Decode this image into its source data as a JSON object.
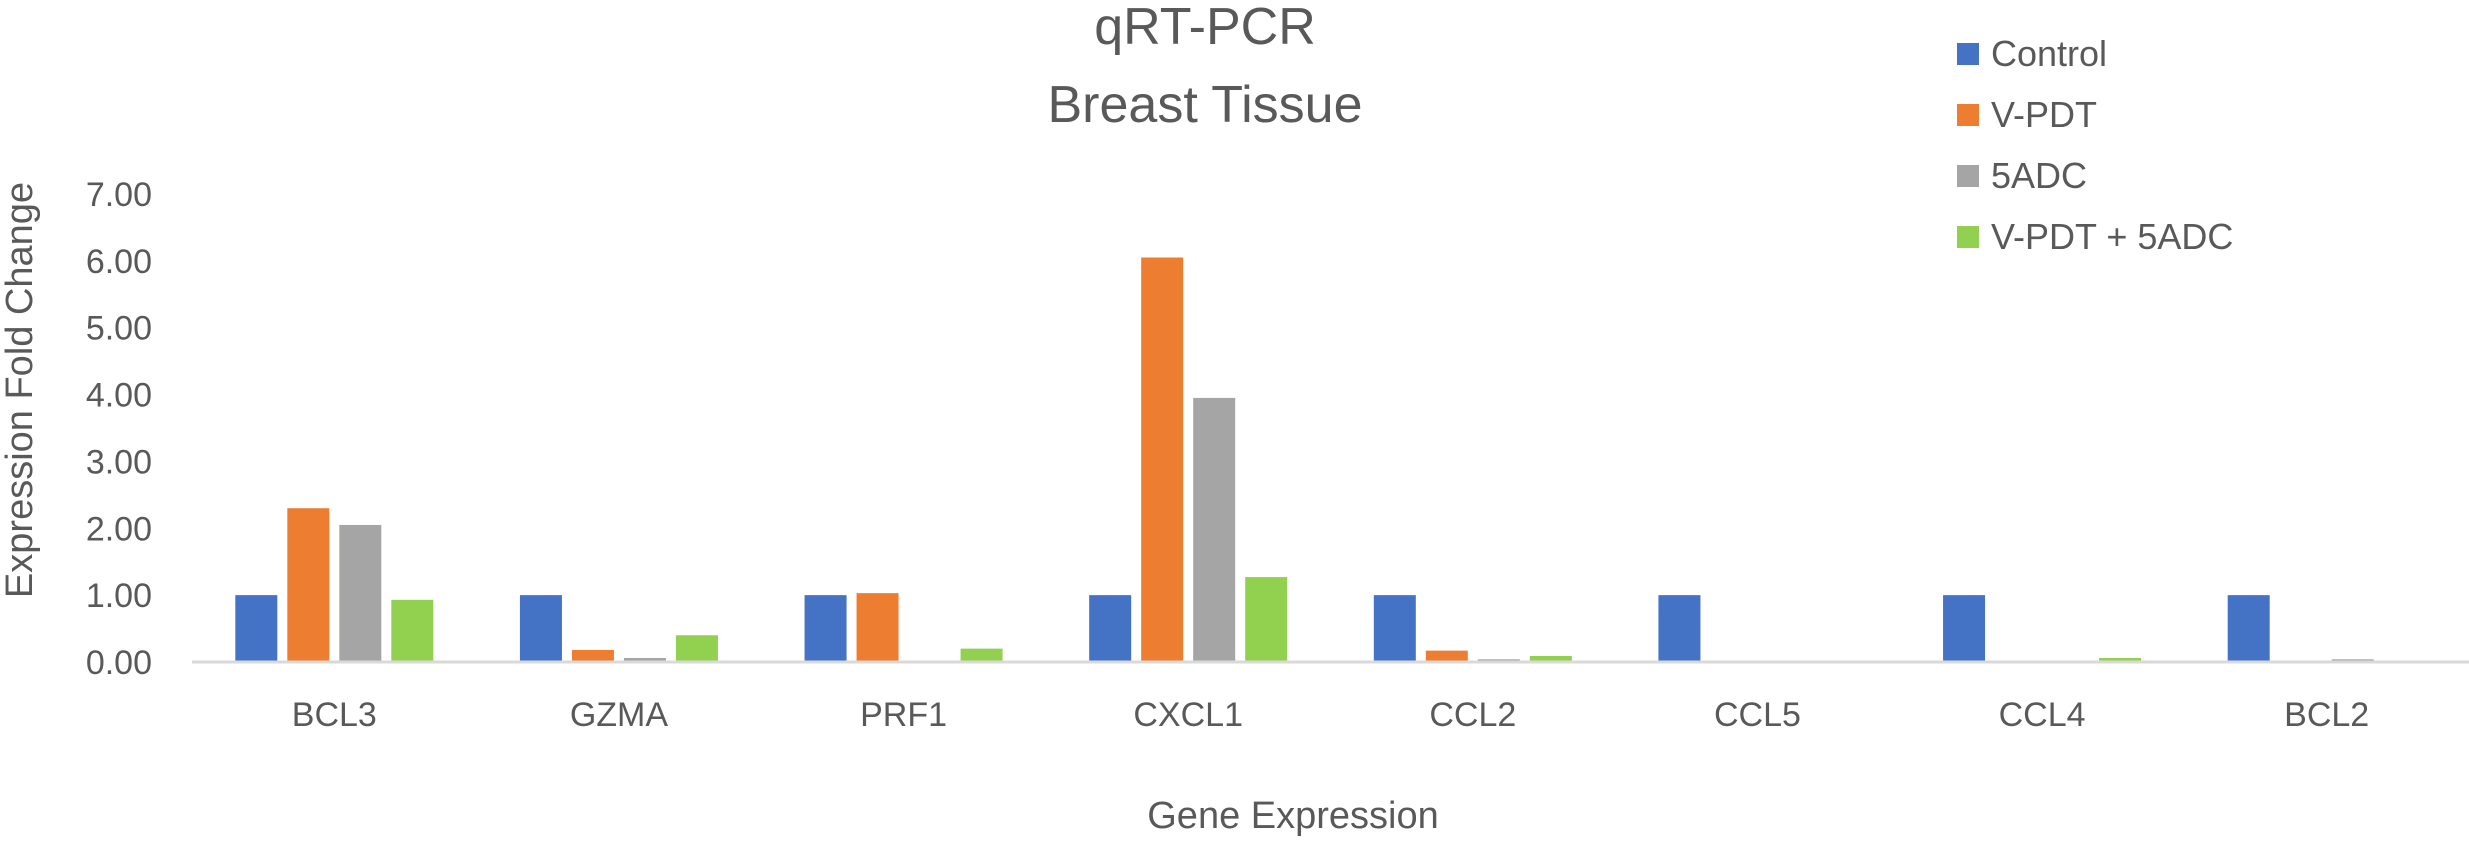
{
  "chart_data": {
    "type": "bar",
    "title": "qRT-PCR",
    "subtitle": "Breast Tissue",
    "xlabel": "Gene Expression",
    "ylabel": "Expression Fold Change",
    "ylim": [
      0,
      7
    ],
    "ytick_labels": [
      "0.00",
      "1.00",
      "2.00",
      "3.00",
      "4.00",
      "5.00",
      "6.00",
      "7.00"
    ],
    "grid": false,
    "legend_position": "top-right",
    "categories": [
      "BCL3",
      "GZMA",
      "PRF1",
      "CXCL1",
      "CCL2",
      "CCL5",
      "CCL4",
      "BCL2"
    ],
    "series": [
      {
        "name": "Control",
        "color": "#4472C4",
        "values": [
          1.0,
          1.0,
          1.0,
          1.0,
          1.0,
          1.0,
          1.0,
          1.0
        ]
      },
      {
        "name": "V-PDT",
        "color": "#ED7D31",
        "values": [
          2.3,
          0.18,
          1.03,
          6.05,
          0.17,
          0.0,
          0.0,
          0.02
        ]
      },
      {
        "name": "5ADC",
        "color": "#A5A5A5",
        "values": [
          2.05,
          0.06,
          0.0,
          3.95,
          0.04,
          0.0,
          0.0,
          0.04
        ]
      },
      {
        "name": "V-PDT + 5ADC",
        "color": "#92D050",
        "values": [
          0.93,
          0.4,
          0.2,
          1.27,
          0.09,
          0.0,
          0.06,
          0.02
        ]
      }
    ]
  }
}
